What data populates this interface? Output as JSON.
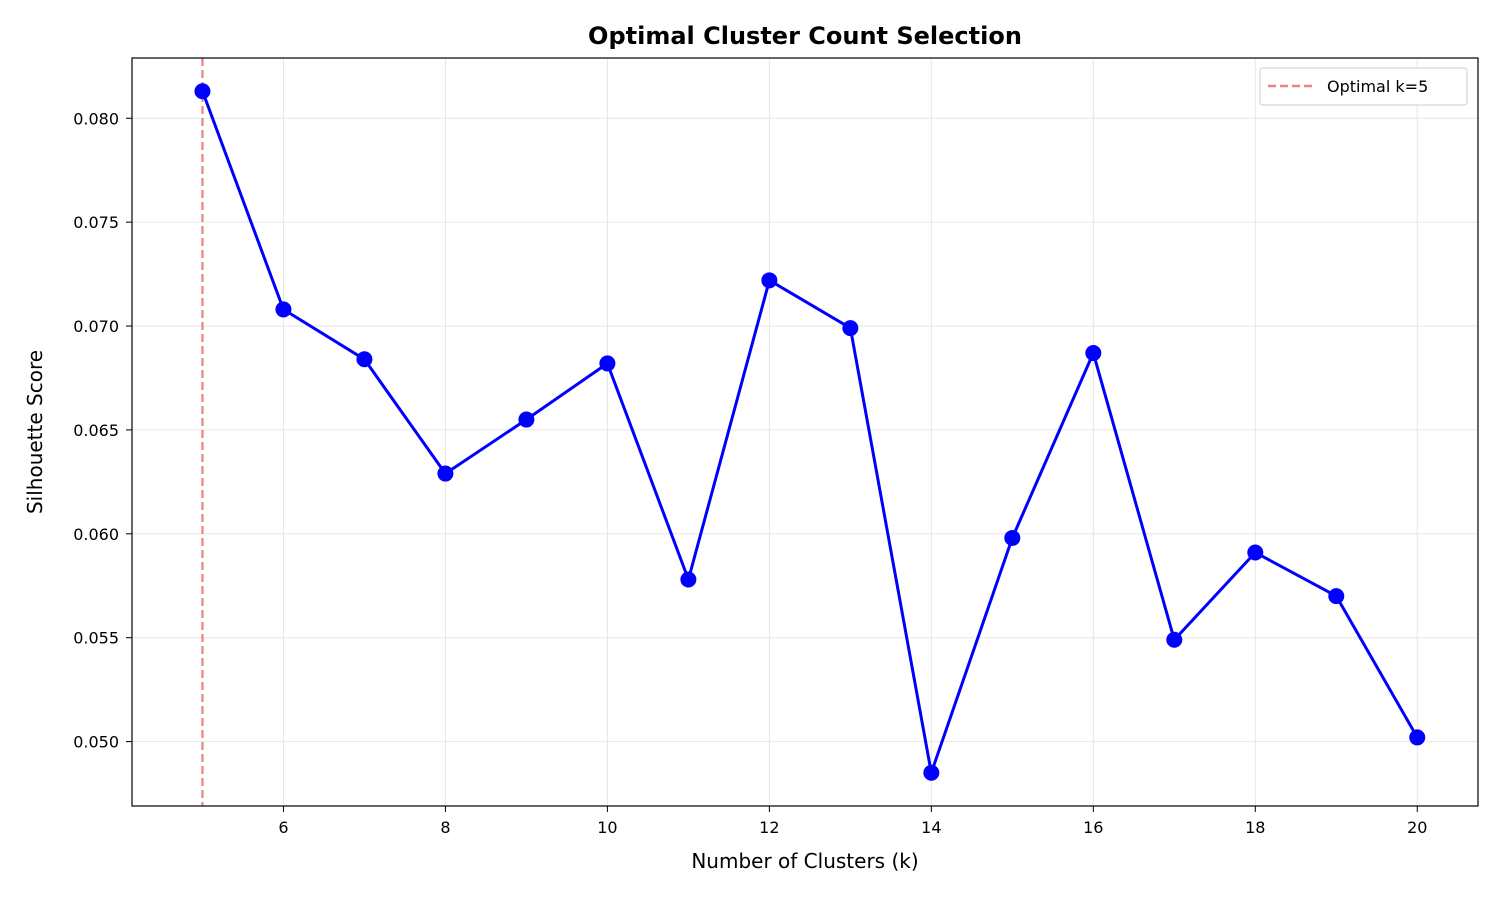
{
  "chart_data": {
    "type": "line",
    "title": "Optimal Cluster Count Selection",
    "xlabel": "Number of Clusters (k)",
    "ylabel": "Silhouette Score",
    "xlim": [
      4.13,
      20.75
    ],
    "ylim": [
      0.0469,
      0.0829
    ],
    "x_ticks": [
      6,
      8,
      10,
      12,
      14,
      16,
      18,
      20
    ],
    "x_tick_labels": [
      "6",
      "8",
      "10",
      "12",
      "14",
      "16",
      "18",
      "20"
    ],
    "y_ticks": [
      0.05,
      0.055,
      0.06,
      0.065,
      0.07,
      0.075,
      0.08
    ],
    "y_tick_labels": [
      "0.050",
      "0.055",
      "0.060",
      "0.065",
      "0.070",
      "0.075",
      "0.080"
    ],
    "grid": true,
    "legend_position": "top-right",
    "series": [
      {
        "color": "#0000ff",
        "marker": "circle",
        "x": [
          5,
          6,
          7,
          8,
          9,
          10,
          11,
          12,
          13,
          14,
          15,
          16,
          17,
          18,
          19,
          20
        ],
        "y": [
          0.0813,
          0.0708,
          0.0684,
          0.0629,
          0.0655,
          0.0682,
          0.0578,
          0.0722,
          0.0699,
          0.0485,
          0.0598,
          0.0687,
          0.0549,
          0.0591,
          0.057,
          0.0502
        ]
      }
    ],
    "reference_lines": [
      {
        "orientation": "vertical",
        "x": 5,
        "label": "Optimal k=5",
        "color": "#f08080",
        "style": "dashed"
      }
    ]
  }
}
